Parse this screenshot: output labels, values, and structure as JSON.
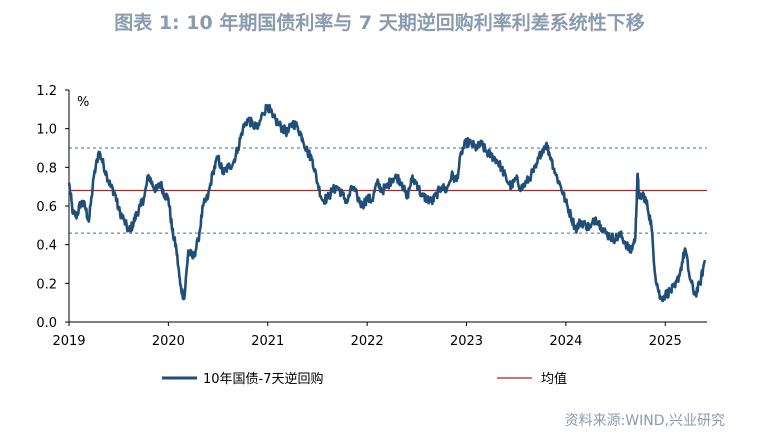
{
  "chart_data": {
    "type": "line",
    "title": "图表 1:  10 年期国债利率与 7 天期逆回购利率利差系统性下移",
    "ylabel": "%",
    "ylim": [
      0,
      1.2
    ],
    "yticks": [
      "0.0",
      "0.2",
      "0.4",
      "0.6",
      "0.8",
      "1.0",
      "1.2"
    ],
    "ytick_values": [
      0,
      0.2,
      0.4,
      0.6,
      0.8,
      1.0,
      1.2
    ],
    "xlim": [
      2019.0,
      2025.42
    ],
    "xticks": [
      "2019",
      "2020",
      "2021",
      "2022",
      "2023",
      "2024",
      "2025"
    ],
    "xtick_values": [
      2019,
      2020,
      2021,
      2022,
      2023,
      2024,
      2025
    ],
    "reference_lines": [
      {
        "name": "mean",
        "value": 0.68,
        "color": "#b22222",
        "style": "solid"
      },
      {
        "name": "upper-band",
        "value": 0.9,
        "color": "#4a6f8a",
        "style": "dashed"
      },
      {
        "name": "lower-band",
        "value": 0.46,
        "color": "#4a6f8a",
        "style": "dashed"
      }
    ],
    "series": [
      {
        "name": "10年国债-7天逆回购",
        "color": "#1f4e79",
        "x": [
          2019.0,
          2019.04,
          2019.08,
          2019.12,
          2019.16,
          2019.2,
          2019.25,
          2019.3,
          2019.33,
          2019.38,
          2019.42,
          2019.46,
          2019.5,
          2019.55,
          2019.6,
          2019.64,
          2019.68,
          2019.72,
          2019.76,
          2019.8,
          2019.84,
          2019.88,
          2019.92,
          2019.96,
          2020.0,
          2020.04,
          2020.08,
          2020.12,
          2020.16,
          2020.2,
          2020.25,
          2020.3,
          2020.35,
          2020.4,
          2020.45,
          2020.5,
          2020.55,
          2020.6,
          2020.65,
          2020.7,
          2020.75,
          2020.8,
          2020.85,
          2020.9,
          2020.95,
          2021.0,
          2021.05,
          2021.1,
          2021.15,
          2021.2,
          2021.25,
          2021.3,
          2021.35,
          2021.4,
          2021.45,
          2021.5,
          2021.55,
          2021.6,
          2021.65,
          2021.7,
          2021.75,
          2021.8,
          2021.85,
          2021.9,
          2021.95,
          2022.0,
          2022.05,
          2022.1,
          2022.15,
          2022.2,
          2022.25,
          2022.3,
          2022.35,
          2022.4,
          2022.45,
          2022.5,
          2022.55,
          2022.6,
          2022.65,
          2022.7,
          2022.75,
          2022.8,
          2022.85,
          2022.9,
          2022.95,
          2023.0,
          2023.05,
          2023.1,
          2023.15,
          2023.2,
          2023.25,
          2023.3,
          2023.35,
          2023.4,
          2023.45,
          2023.5,
          2023.55,
          2023.6,
          2023.65,
          2023.7,
          2023.75,
          2023.8,
          2023.85,
          2023.9,
          2023.95,
          2024.0,
          2024.05,
          2024.1,
          2024.15,
          2024.2,
          2024.25,
          2024.3,
          2024.35,
          2024.4,
          2024.45,
          2024.5,
          2024.55,
          2024.6,
          2024.65,
          2024.7,
          2024.72,
          2024.74,
          2024.78,
          2024.82,
          2024.86,
          2024.9,
          2024.95,
          2025.0,
          2025.05,
          2025.1,
          2025.15,
          2025.2,
          2025.25,
          2025.3,
          2025.35,
          2025.4
        ],
        "y": [
          0.72,
          0.56,
          0.55,
          0.62,
          0.6,
          0.52,
          0.75,
          0.88,
          0.84,
          0.76,
          0.7,
          0.67,
          0.58,
          0.53,
          0.47,
          0.5,
          0.56,
          0.6,
          0.65,
          0.76,
          0.71,
          0.68,
          0.72,
          0.66,
          0.64,
          0.47,
          0.38,
          0.19,
          0.12,
          0.37,
          0.33,
          0.42,
          0.6,
          0.65,
          0.78,
          0.85,
          0.77,
          0.8,
          0.82,
          0.9,
          1.0,
          1.05,
          1.02,
          1.0,
          1.08,
          1.12,
          1.06,
          1.03,
          1.0,
          0.98,
          1.03,
          1.01,
          0.95,
          0.88,
          0.84,
          0.72,
          0.63,
          0.64,
          0.68,
          0.7,
          0.66,
          0.62,
          0.7,
          0.65,
          0.6,
          0.64,
          0.63,
          0.72,
          0.68,
          0.7,
          0.74,
          0.75,
          0.72,
          0.64,
          0.74,
          0.72,
          0.65,
          0.64,
          0.62,
          0.66,
          0.7,
          0.68,
          0.76,
          0.73,
          0.88,
          0.93,
          0.92,
          0.9,
          0.92,
          0.88,
          0.86,
          0.84,
          0.8,
          0.74,
          0.7,
          0.74,
          0.69,
          0.72,
          0.76,
          0.8,
          0.88,
          0.92,
          0.85,
          0.76,
          0.7,
          0.62,
          0.55,
          0.48,
          0.52,
          0.5,
          0.49,
          0.54,
          0.5,
          0.46,
          0.44,
          0.43,
          0.45,
          0.41,
          0.36,
          0.44,
          0.76,
          0.64,
          0.66,
          0.6,
          0.5,
          0.24,
          0.12,
          0.14,
          0.16,
          0.18,
          0.26,
          0.38,
          0.22,
          0.14,
          0.2,
          0.32
        ]
      }
    ],
    "legend": [
      {
        "label": "10年国债-7天逆回购",
        "color": "#1f4e79"
      },
      {
        "label": "均值",
        "color": "#b22222"
      }
    ],
    "source": "资料来源:WIND,兴业研究"
  }
}
